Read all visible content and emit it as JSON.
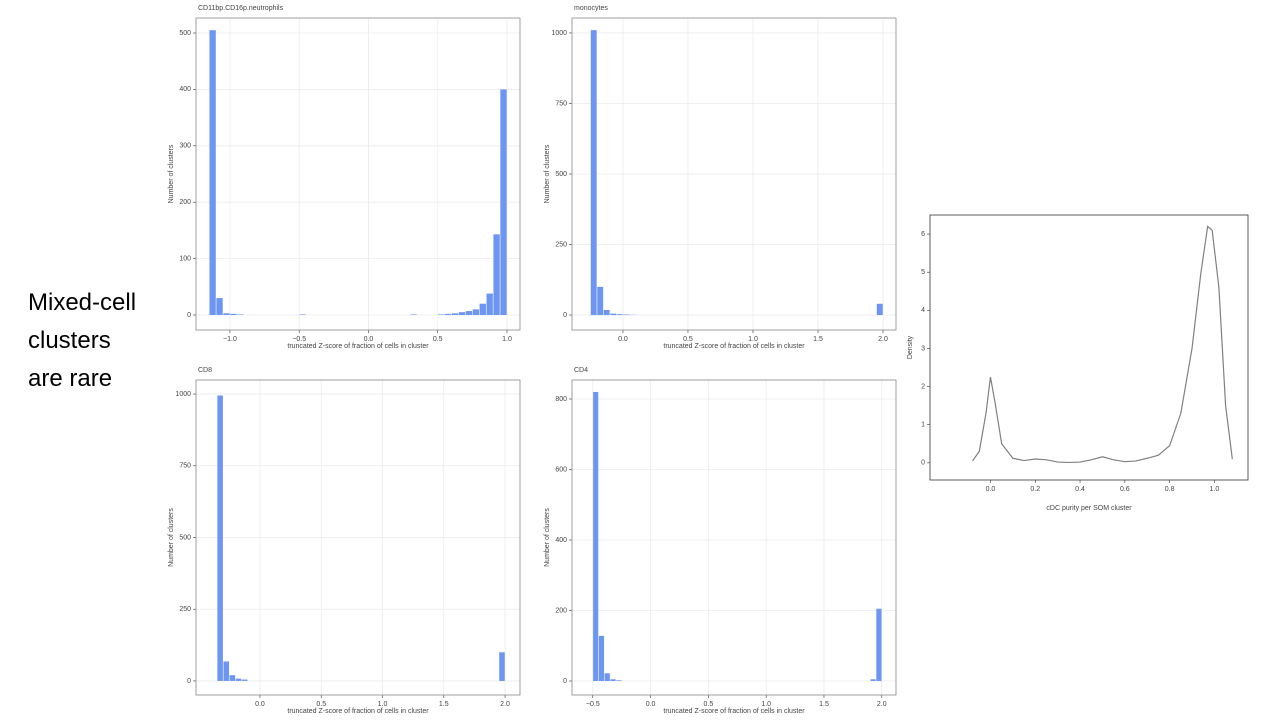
{
  "slide_text": [
    "Mixed-cell",
    "clusters",
    "are rare"
  ],
  "chart_data": [
    {
      "type": "histogram",
      "title": "CD11bp.CD16p.neutrophils",
      "x_label": "truncated Z-score of fraction of cells in cluster",
      "y_label": "Number of clusters",
      "color": "#6d96f2",
      "grid": true,
      "bins": [
        -1.15,
        -1.1,
        -1.05,
        -1.0,
        -0.95,
        -0.9,
        -0.85,
        -0.8,
        -0.75,
        -0.7,
        -0.65,
        -0.6,
        -0.55,
        -0.5,
        -0.45,
        -0.4,
        -0.35,
        -0.3,
        -0.25,
        -0.2,
        -0.15,
        -0.1,
        -0.05,
        0,
        0.05,
        0.1,
        0.15,
        0.2,
        0.25,
        0.3,
        0.35,
        0.4,
        0.45,
        0.5,
        0.55,
        0.6,
        0.65,
        0.7,
        0.75,
        0.8,
        0.85,
        0.9,
        0.95,
        1.0
      ],
      "values": [
        505,
        30,
        3,
        2,
        1,
        0,
        0,
        0,
        0,
        0,
        0,
        0,
        0,
        1,
        0,
        0,
        0,
        0,
        0,
        0,
        0,
        0,
        0,
        0,
        0,
        0,
        0,
        0,
        0,
        1,
        0,
        0,
        0,
        1,
        2,
        3,
        5,
        7,
        10,
        20,
        38,
        143,
        400
      ],
      "xlim": [
        -1.245,
        1.094
      ],
      "ylim": [
        -26.6,
        526.6
      ],
      "xticks": [
        {
          "value": -1.0,
          "label": "−1.0"
        },
        {
          "value": -0.5,
          "label": "−0.5"
        },
        {
          "value": 0,
          "label": "0.0"
        },
        0.5,
        {
          "value": 1.0,
          "label": "1.0"
        }
      ],
      "yticks": [
        0,
        100,
        200,
        300,
        400,
        500
      ]
    },
    {
      "type": "histogram",
      "title": "monocytes",
      "x_label": "truncated Z-score of fraction of cells in cluster",
      "y_label": "Number of clusters",
      "color": "#6d96f2",
      "grid": true,
      "bins": [
        -0.25,
        -0.2,
        -0.15,
        -0.1,
        -0.05,
        0,
        0.05,
        0.1,
        0.15,
        0.2,
        0.25,
        0.3,
        0.35,
        0.4,
        0.45,
        0.5,
        0.55,
        0.6,
        0.65,
        0.7,
        0.75,
        0.8,
        0.85,
        0.9,
        0.95,
        1.0,
        1.05,
        1.1,
        1.15,
        1.2,
        1.25,
        1.3,
        1.35,
        1.4,
        1.45,
        1.5,
        1.55,
        1.6,
        1.65,
        1.7,
        1.75,
        1.8,
        1.85,
        1.9,
        1.95,
        2.0
      ],
      "values": [
        1010,
        100,
        18,
        5,
        3,
        2,
        1,
        0,
        0,
        0,
        0,
        0,
        0,
        0,
        0,
        0,
        0,
        0,
        0,
        0,
        0,
        0,
        0,
        0,
        0,
        0,
        0,
        0,
        0,
        0,
        0,
        0,
        0,
        0,
        0,
        0,
        0,
        0,
        0,
        0,
        0,
        0,
        0,
        0,
        40
      ],
      "xlim": [
        -0.392,
        2.1
      ],
      "ylim": [
        -53,
        1053
      ],
      "xticks": [
        {
          "value": 0,
          "label": "0.0"
        },
        0.5,
        {
          "value": 1.0,
          "label": "1.0"
        },
        1.5,
        {
          "value": 2.0,
          "label": "2.0"
        }
      ],
      "yticks": [
        0,
        250,
        500,
        750,
        1000
      ]
    },
    {
      "type": "histogram",
      "title": "CD8",
      "x_label": "truncated Z-score of fraction of cells in cluster",
      "y_label": "Number of clusters",
      "color": "#6d96f2",
      "grid": true,
      "bins": [
        -0.35,
        -0.3,
        -0.25,
        -0.2,
        -0.15,
        -0.1,
        -0.05,
        0,
        0.05,
        0.1,
        0.15,
        0.2,
        0.25,
        0.3,
        0.35,
        0.4,
        0.45,
        0.5,
        0.55,
        0.6,
        0.65,
        0.7,
        0.75,
        0.8,
        0.85,
        0.9,
        0.95,
        1.0,
        1.05,
        1.1,
        1.15,
        1.2,
        1.25,
        1.3,
        1.35,
        1.4,
        1.45,
        1.5,
        1.55,
        1.6,
        1.65,
        1.7,
        1.75,
        1.8,
        1.85,
        1.9,
        1.95,
        2.0
      ],
      "values": [
        995,
        68,
        20,
        8,
        5,
        0,
        0,
        0,
        0,
        0,
        0,
        0,
        0,
        0,
        0,
        0,
        0,
        0,
        0,
        0,
        0,
        0,
        0,
        0,
        0,
        0,
        0,
        0,
        0,
        0,
        0,
        0,
        0,
        0,
        0,
        0,
        0,
        0,
        0,
        0,
        0,
        0,
        0,
        0,
        0,
        0,
        100
      ],
      "xlim": [
        -0.522,
        2.122
      ],
      "ylim": [
        -49,
        1049
      ],
      "xticks": [
        {
          "value": 0,
          "label": "0.0"
        },
        0.5,
        {
          "value": 1.0,
          "label": "1.0"
        },
        1.5,
        {
          "value": 2.0,
          "label": "2.0"
        }
      ],
      "yticks": [
        0,
        250,
        500,
        750,
        1000
      ]
    },
    {
      "type": "histogram",
      "title": "CD4",
      "x_label": "truncated Z-score of fraction of cells in cluster",
      "y_label": "Number of clusters",
      "color": "#6d96f2",
      "grid": true,
      "bins": [
        -0.5,
        -0.45,
        -0.4,
        -0.35,
        -0.3,
        -0.25,
        -0.2,
        -0.15,
        -0.1,
        -0.05,
        0,
        0.05,
        0.1,
        0.15,
        0.2,
        0.25,
        0.3,
        0.35,
        0.4,
        0.45,
        0.5,
        0.55,
        0.6,
        0.65,
        0.7,
        0.75,
        0.8,
        0.85,
        0.9,
        0.95,
        1.0,
        1.05,
        1.1,
        1.15,
        1.2,
        1.25,
        1.3,
        1.35,
        1.4,
        1.45,
        1.5,
        1.55,
        1.6,
        1.65,
        1.7,
        1.75,
        1.8,
        1.85,
        1.9,
        1.95,
        2.0
      ],
      "values": [
        820,
        128,
        22,
        5,
        2,
        0,
        0,
        0,
        0,
        0,
        0,
        0,
        0,
        0,
        0,
        0,
        0,
        0,
        0,
        0,
        0,
        0,
        0,
        0,
        0,
        0,
        0,
        0,
        0,
        0,
        0,
        0,
        0,
        0,
        0,
        0,
        0,
        0,
        0,
        0,
        0,
        0,
        0,
        0,
        0,
        0,
        0,
        0,
        5,
        205
      ],
      "xlim": [
        -0.68,
        2.123
      ],
      "ylim": [
        -39.7,
        853.9
      ],
      "xticks": [
        {
          "value": -0.5,
          "label": "−0.5"
        },
        {
          "value": 0,
          "label": "0.0"
        },
        0.5,
        {
          "value": 1.0,
          "label": "1.0"
        },
        1.5,
        {
          "value": 2.0,
          "label": "2.0"
        }
      ],
      "yticks": [
        0,
        200,
        400,
        600,
        800
      ]
    },
    {
      "type": "line",
      "x_label": "cDC purity per SOM cluster",
      "y_label": "Density",
      "color": "#808080",
      "grid": false,
      "x": [
        -0.08,
        -0.05,
        -0.02,
        0,
        0.02,
        0.05,
        0.1,
        0.15,
        0.2,
        0.25,
        0.3,
        0.35,
        0.4,
        0.45,
        0.5,
        0.55,
        0.6,
        0.65,
        0.7,
        0.75,
        0.8,
        0.85,
        0.9,
        0.94,
        0.97,
        0.99,
        1.02,
        1.05,
        1.08
      ],
      "values": [
        0.05,
        0.3,
        1.3,
        2.25,
        1.6,
        0.5,
        0.12,
        0.06,
        0.1,
        0.08,
        0.02,
        0.01,
        0.02,
        0.08,
        0.16,
        0.08,
        0.03,
        0.05,
        0.12,
        0.2,
        0.45,
        1.3,
        3.0,
        5.0,
        6.2,
        6.1,
        4.6,
        1.5,
        0.1
      ],
      "xlim": [
        -0.27,
        1.15
      ],
      "ylim": [
        -0.45,
        6.5
      ],
      "xticks": [
        {
          "value": 0,
          "label": "0.0"
        },
        0.2,
        0.4,
        0.6,
        0.8,
        {
          "value": 1.0,
          "label": "1.0"
        }
      ],
      "yticks": [
        0,
        1,
        2,
        3,
        4,
        5,
        6
      ]
    }
  ]
}
